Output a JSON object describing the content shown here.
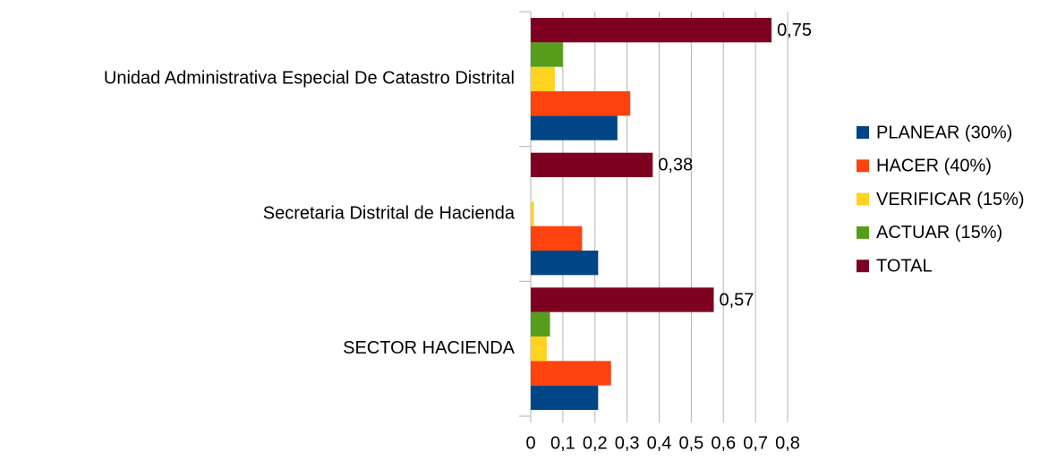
{
  "chart_data": {
    "type": "bar",
    "orientation": "horizontal",
    "categories": [
      "Unidad Administrativa Especial De Catastro Distrital",
      "Secretaria Distrital de Hacienda",
      "SECTOR HACIENDA"
    ],
    "series": [
      {
        "name": "PLANEAR (30%)",
        "color": "#004586",
        "values": [
          0.27,
          0.21,
          0.21
        ]
      },
      {
        "name": "HACER (40%)",
        "color": "#ff420e",
        "values": [
          0.31,
          0.16,
          0.25
        ]
      },
      {
        "name": "VERIFICAR (15%)",
        "color": "#ffd320",
        "values": [
          0.075,
          0.01,
          0.05
        ]
      },
      {
        "name": "ACTUAR (15%)",
        "color": "#579d1c",
        "values": [
          0.1,
          0,
          0.06
        ]
      },
      {
        "name": "TOTAL",
        "color": "#7e0021",
        "values": [
          0.75,
          0.38,
          0.57
        ],
        "value_labels": [
          "0,75",
          "0,38",
          "0,57"
        ]
      }
    ],
    "xlim": [
      0,
      0.8
    ],
    "xticks": [
      0,
      {
        "value": 0.1,
        "label": "0,1"
      },
      {
        "value": 0.2,
        "label": "0,2"
      },
      {
        "value": 0.3,
        "label": "0,3"
      },
      {
        "value": 0.4,
        "label": "0,4"
      },
      {
        "value": 0.5,
        "label": "0,5"
      },
      {
        "value": 0.6,
        "label": "0,6"
      },
      {
        "value": 0.7,
        "label": "0,7"
      },
      {
        "value": 0.8,
        "label": "0,8"
      }
    ],
    "grid": true,
    "legend": "right"
  }
}
